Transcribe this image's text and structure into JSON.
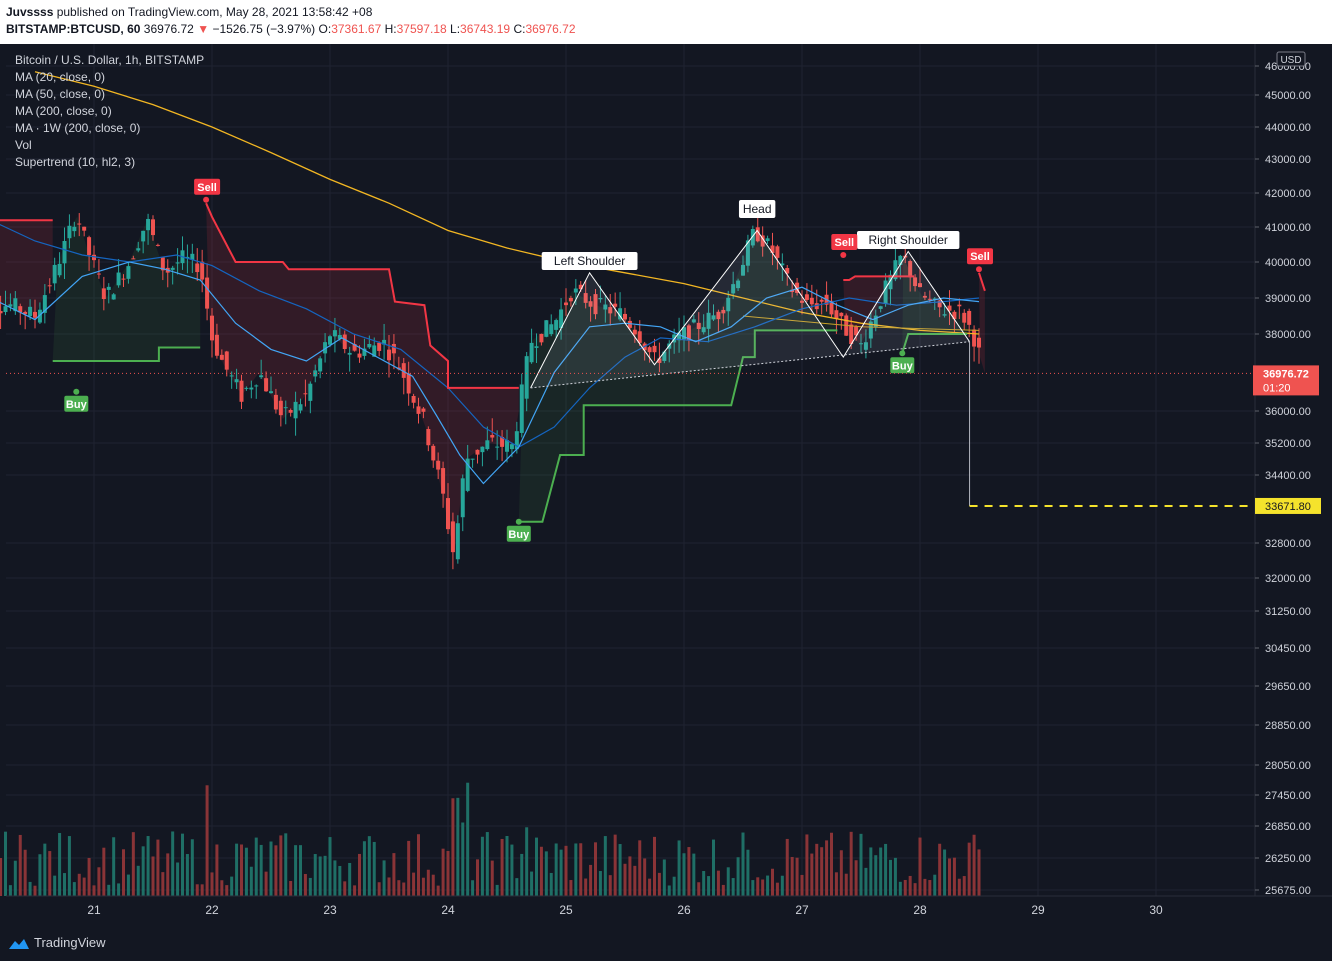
{
  "header": {
    "publisher_user": "Juvssss",
    "publisher_rest": " published on TradingView.com, May 28, 2021 13:58:42 +08",
    "symbol": "BITSTAMP:BTCUSD, 60",
    "last": "36976.72",
    "change": "−1526.75 (−3.97%)",
    "open_label": "O:",
    "open": "37361.67",
    "high_label": "H:",
    "high": "37597.18",
    "low_label": "L:",
    "low": "36743.19",
    "close_label": "C:",
    "close": "36976.72"
  },
  "legend": {
    "title": "Bitcoin / U.S. Dollar, 1h, BITSTAMP",
    "items": [
      "MA (20, close, 0)",
      "MA (50, close, 0)",
      "MA (200, close, 0)",
      "MA · 1W (200, close, 0)",
      "Vol",
      "Supertrend (10, hl2, 3)"
    ]
  },
  "footer": {
    "brand": "TradingView"
  },
  "colors": {
    "background": "#131722",
    "up": "#26a69a",
    "down": "#ef5350",
    "supertrend_up": "#4caf50",
    "supertrend_down": "#f23645",
    "ma20": "#2196f3",
    "ma200": "#f2b622",
    "grid": "#1f2331",
    "target": "#f5e32c"
  },
  "chart_data": {
    "type": "candlestick",
    "symbol": "BITSTAMP:BTCUSD",
    "timeframe": "1h",
    "currency": "USD",
    "x_tick_labels": [
      "21",
      "22",
      "23",
      "24",
      "25",
      "26",
      "27",
      "28",
      "29",
      "30"
    ],
    "y_tick_labels": [
      "46000.00",
      "45000.00",
      "44000.00",
      "43000.00",
      "42000.00",
      "41000.00",
      "40000.00",
      "39000.00",
      "38000.00",
      "36000.00",
      "35200.00",
      "34400.00",
      "32800.00",
      "32000.00",
      "31250.00",
      "30450.00",
      "29650.00",
      "28850.00",
      "28050.00",
      "27450.00",
      "26850.00",
      "26250.00",
      "25675.00"
    ],
    "ylim": [
      25675,
      46000
    ],
    "last_price": "36976.72",
    "countdown": "01:20",
    "target_price": "33671.80",
    "close_path": [
      [
        20.3,
        38800
      ],
      [
        20.5,
        38500
      ],
      [
        20.7,
        40000
      ],
      [
        20.85,
        41400
      ],
      [
        20.95,
        40300
      ],
      [
        21.1,
        39000
      ],
      [
        21.3,
        40000
      ],
      [
        21.45,
        41200
      ],
      [
        21.6,
        39700
      ],
      [
        21.75,
        40100
      ],
      [
        21.9,
        39900
      ],
      [
        22.0,
        37900
      ],
      [
        22.1,
        37200
      ],
      [
        22.25,
        36400
      ],
      [
        22.4,
        37000
      ],
      [
        22.6,
        35800
      ],
      [
        22.8,
        36400
      ],
      [
        23.0,
        38000
      ],
      [
        23.2,
        37500
      ],
      [
        23.45,
        37800
      ],
      [
        23.6,
        37100
      ],
      [
        23.8,
        35700
      ],
      [
        23.95,
        34000
      ],
      [
        24.05,
        32500
      ],
      [
        24.15,
        34800
      ],
      [
        24.35,
        35200
      ],
      [
        24.55,
        35100
      ],
      [
        24.7,
        37800
      ],
      [
        24.9,
        38300
      ],
      [
        25.05,
        39200
      ],
      [
        25.25,
        38800
      ],
      [
        25.45,
        38600
      ],
      [
        25.6,
        38100
      ],
      [
        25.75,
        37300
      ],
      [
        25.95,
        37900
      ],
      [
        26.15,
        38300
      ],
      [
        26.3,
        38600
      ],
      [
        26.45,
        39600
      ],
      [
        26.6,
        40900
      ],
      [
        26.75,
        40300
      ],
      [
        26.9,
        39300
      ],
      [
        27.05,
        38800
      ],
      [
        27.2,
        38900
      ],
      [
        27.35,
        38200
      ],
      [
        27.5,
        37700
      ],
      [
        27.7,
        39200
      ],
      [
        27.85,
        40200
      ],
      [
        28.0,
        39100
      ],
      [
        28.15,
        38700
      ],
      [
        28.35,
        38600
      ],
      [
        28.45,
        38000
      ],
      [
        28.55,
        36976.72
      ]
    ],
    "supertrend_segments": [
      {
        "direction": "down",
        "points": [
          [
            20.0,
            41200
          ],
          [
            20.65,
            41200
          ]
        ]
      },
      {
        "direction": "up",
        "points": [
          [
            20.65,
            37300
          ],
          [
            21.55,
            37300
          ],
          [
            21.55,
            37650
          ],
          [
            21.9,
            37650
          ]
        ]
      },
      {
        "direction": "down",
        "points": [
          [
            21.95,
            41700
          ],
          [
            22.0,
            41300
          ],
          [
            22.2,
            40000
          ],
          [
            22.6,
            40000
          ],
          [
            22.65,
            39800
          ],
          [
            23.5,
            39800
          ],
          [
            23.55,
            38900
          ],
          [
            23.8,
            38800
          ],
          [
            23.85,
            37700
          ],
          [
            24.0,
            37300
          ],
          [
            24.0,
            36600
          ],
          [
            24.6,
            36600
          ]
        ]
      },
      {
        "direction": "up",
        "points": [
          [
            24.6,
            33300
          ],
          [
            24.8,
            33300
          ],
          [
            24.95,
            34900
          ],
          [
            25.15,
            34900
          ],
          [
            25.15,
            36150
          ],
          [
            26.4,
            36150
          ],
          [
            26.5,
            37400
          ],
          [
            26.6,
            37400
          ],
          [
            26.6,
            38100
          ],
          [
            27.3,
            38100
          ]
        ]
      },
      {
        "direction": "down",
        "points": [
          [
            27.35,
            39500
          ],
          [
            27.4,
            39500
          ],
          [
            27.45,
            39600
          ],
          [
            27.95,
            39600
          ]
        ]
      },
      {
        "direction": "up",
        "points": [
          [
            27.85,
            37500
          ],
          [
            27.9,
            38000
          ],
          [
            28.4,
            38000
          ]
        ]
      },
      {
        "direction": "down",
        "points": [
          [
            28.5,
            39700
          ],
          [
            28.55,
            39200
          ]
        ]
      }
    ],
    "signals": [
      {
        "label": "Buy",
        "x": 20.85,
        "price": 36500
      },
      {
        "label": "Sell",
        "x": 21.95,
        "price": 41800
      },
      {
        "label": "Buy",
        "x": 24.6,
        "price": 33300
      },
      {
        "label": "Sell",
        "x": 27.35,
        "price": 40200
      },
      {
        "label": "Buy",
        "x": 27.85,
        "price": 37500
      },
      {
        "label": "Sell",
        "x": 28.5,
        "price": 39800
      }
    ],
    "pattern": {
      "name": "head and shoulders",
      "labels": [
        {
          "text": "Left Shoulder",
          "x": 25.2,
          "price": 40000
        },
        {
          "text": "Head",
          "x": 26.62,
          "price": 41500
        },
        {
          "text": "Right Shoulder",
          "x": 27.9,
          "price": 40600
        }
      ],
      "points": [
        [
          24.7,
          36600
        ],
        [
          25.2,
          39700
        ],
        [
          25.75,
          37200
        ],
        [
          26.62,
          40900
        ],
        [
          27.35,
          37400
        ],
        [
          27.9,
          40300
        ],
        [
          28.42,
          37800
        ]
      ],
      "neckline": [
        [
          24.7,
          36600
        ],
        [
          28.42,
          37800
        ]
      ],
      "projection": {
        "x": 28.42,
        "from": 37800,
        "to": 33671.8,
        "end_x": 30.9
      }
    },
    "ma20": [
      [
        20.0,
        39200
      ],
      [
        20.5,
        38400
      ],
      [
        20.9,
        39600
      ],
      [
        21.3,
        40000
      ],
      [
        21.6,
        39800
      ],
      [
        21.9,
        39500
      ],
      [
        22.2,
        38300
      ],
      [
        22.5,
        37600
      ],
      [
        22.8,
        37300
      ],
      [
        23.1,
        37900
      ],
      [
        23.4,
        37400
      ],
      [
        23.7,
        36900
      ],
      [
        23.9,
        35900
      ],
      [
        24.1,
        34900
      ],
      [
        24.3,
        34200
      ],
      [
        24.6,
        35100
      ],
      [
        24.9,
        37000
      ],
      [
        25.2,
        38200
      ],
      [
        25.5,
        38300
      ],
      [
        25.8,
        38200
      ],
      [
        26.1,
        37800
      ],
      [
        26.4,
        38200
      ],
      [
        26.7,
        39000
      ],
      [
        27.0,
        39300
      ],
      [
        27.3,
        38800
      ],
      [
        27.6,
        38400
      ],
      [
        27.9,
        38800
      ],
      [
        28.2,
        39000
      ],
      [
        28.5,
        38900
      ]
    ],
    "ma50": [
      [
        20.0,
        41400
      ],
      [
        20.5,
        40600
      ],
      [
        20.9,
        40200
      ],
      [
        21.3,
        40000
      ],
      [
        21.7,
        40200
      ],
      [
        22.0,
        39900
      ],
      [
        22.4,
        39200
      ],
      [
        22.8,
        38700
      ],
      [
        23.2,
        38000
      ],
      [
        23.6,
        37600
      ],
      [
        24.0,
        36600
      ],
      [
        24.3,
        35600
      ],
      [
        24.6,
        35100
      ],
      [
        24.9,
        35600
      ],
      [
        25.2,
        36600
      ],
      [
        25.5,
        37400
      ],
      [
        25.8,
        37900
      ],
      [
        26.2,
        37800
      ],
      [
        26.6,
        38200
      ],
      [
        27.0,
        38700
      ],
      [
        27.4,
        39000
      ],
      [
        27.8,
        38800
      ],
      [
        28.2,
        38900
      ],
      [
        28.5,
        39000
      ]
    ],
    "ma200": [
      [
        20.5,
        45800
      ],
      [
        21.0,
        45300
      ],
      [
        21.5,
        44700
      ],
      [
        22.0,
        44000
      ],
      [
        22.5,
        43200
      ],
      [
        23.0,
        42400
      ],
      [
        23.5,
        41700
      ],
      [
        24.0,
        40900
      ],
      [
        24.5,
        40400
      ],
      [
        25.0,
        40000
      ],
      [
        25.5,
        39700
      ],
      [
        26.0,
        39400
      ],
      [
        26.5,
        39000
      ],
      [
        27.0,
        38600
      ],
      [
        27.5,
        38300
      ],
      [
        28.0,
        38100
      ],
      [
        28.5,
        38000
      ]
    ],
    "ma_1w200": [
      [
        26.5,
        38500
      ],
      [
        27.0,
        38350
      ],
      [
        27.5,
        38200
      ],
      [
        28.0,
        38150
      ],
      [
        28.5,
        38100
      ]
    ],
    "volume_axis_note": "volume bars shown in lower pane (unlabelled)"
  }
}
